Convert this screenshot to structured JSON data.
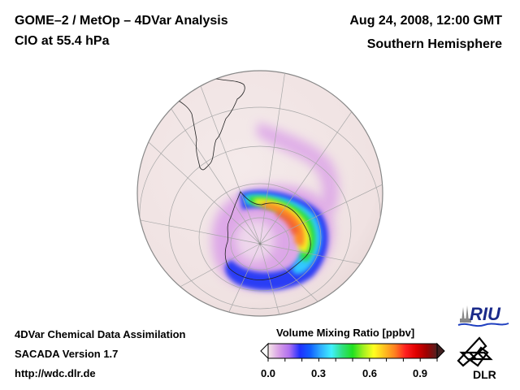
{
  "header": {
    "title_left": "GOME–2 / MetOp – 4DVar Analysis",
    "subtitle_left": "ClO at 55.4 hPa",
    "title_right": "Aug 24, 2008, 12:00 GMT",
    "subtitle_right": "Southern Hemisphere"
  },
  "footer": {
    "line1": "4DVar Chemical Data Assimilation",
    "line2": "SACADA Version 1.7",
    "line3": "http://wdc.dlr.de"
  },
  "map": {
    "projection": "orthographic",
    "hemisphere": "Southern Hemisphere",
    "species": "ClO",
    "pressure_level": "55.4 hPa",
    "background_color": "#f3e6e6",
    "coastline_color": "#222222",
    "graticule_color": "#aaaaaa"
  },
  "colorbar": {
    "title": "Volume Mixing Ratio [ppbv]",
    "ticks": [
      "0.0",
      "0.3",
      "0.6",
      "0.9"
    ],
    "range": [
      0.0,
      1.0
    ],
    "extend": "both",
    "colors": [
      "#f5e8e8",
      "#d9a0e6",
      "#b070f0",
      "#2030ff",
      "#1060ff",
      "#30b0ff",
      "#40f0ff",
      "#30e080",
      "#20e020",
      "#a0f020",
      "#ffff20",
      "#ffc020",
      "#ff8020",
      "#ff2020",
      "#e00000",
      "#a00000",
      "#502020"
    ]
  },
  "logos": {
    "riu": "RIU",
    "dlr": "DLR"
  }
}
